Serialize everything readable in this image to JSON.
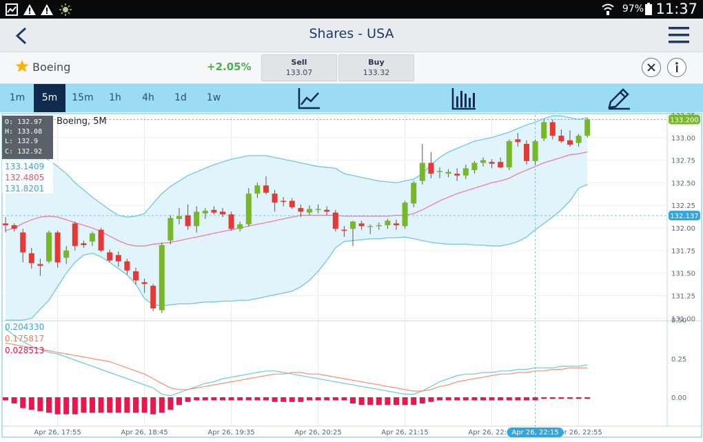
{
  "status_bar": {
    "battery": "97%",
    "time": "11:37",
    "left_icons": [
      "image-icon",
      "warning-icon",
      "warning-icon",
      "sun-icon"
    ],
    "right_icons": [
      "wifi-icon"
    ]
  },
  "header": {
    "title": "Shares - USA",
    "back_icon": "arrow-left-icon",
    "menu_icon": "hamburger-menu-icon"
  },
  "instrument": {
    "favorite_icon": "star-icon",
    "name": "Boeing",
    "change": "+2.05%",
    "sell_label": "Sell",
    "sell_price": "133.07",
    "buy_label": "Buy",
    "buy_price": "133.32",
    "close_icon": "close-icon",
    "info_icon": "info-icon"
  },
  "timeframes": {
    "items": [
      "1m",
      "5m",
      "15m",
      "1h",
      "4h",
      "1d",
      "1w"
    ],
    "active": "5m",
    "tools": [
      "line-chart-icon",
      "bar-chart-icon",
      "pencil-draw-icon"
    ]
  },
  "colors": {
    "up": "#77b72a",
    "down": "#e53935",
    "band": "#6ec6e6",
    "band_fill": "#e2f4fb",
    "ma": "#ec7f96",
    "accent": "#9bdcf3",
    "macd_line": "#6ec6e6",
    "macd_signal": "#f2916f",
    "macd_hist": "#e8174d"
  },
  "chart_data": {
    "type": "candlestick",
    "title": "Boeing, 5M",
    "ohlc_box": {
      "O": "132.97",
      "H": "133.08",
      "L": "132.9",
      "C": "132.92"
    },
    "indicator_values": [
      "133.1409",
      "132.4805",
      "131.8201"
    ],
    "price_axis": {
      "ticks": [
        "133.25",
        "133.00",
        "132.75",
        "132.50",
        "132.25",
        "132.00",
        "131.75",
        "131.50",
        "131.25",
        "131.00"
      ],
      "range": [
        130.98,
        133.28
      ],
      "current_price_label": "133.200",
      "crosshair_price_label": "132.137",
      "current_price": 133.2,
      "crosshair_price": 132.137
    },
    "time_axis": {
      "labels": [
        "Apr 26, 17:55",
        "Apr 26, 18:45",
        "Apr 26, 19:35",
        "Apr 26, 20:25",
        "Apr 26, 21:15",
        "Apr 26, 22:05",
        "Apr 26, 22:55"
      ],
      "crosshair_label": "Apr 26, 22:15",
      "crosshair_index": 61
    },
    "candles": [
      {
        "o": 132.05,
        "h": 132.12,
        "l": 131.95,
        "c": 132.03
      },
      {
        "o": 132.03,
        "h": 132.05,
        "l": 131.96,
        "c": 131.99
      },
      {
        "o": 131.95,
        "h": 131.99,
        "l": 131.62,
        "c": 131.73
      },
      {
        "o": 131.72,
        "h": 131.78,
        "l": 131.55,
        "c": 131.61
      },
      {
        "o": 131.6,
        "h": 131.66,
        "l": 131.47,
        "c": 131.58
      },
      {
        "o": 131.63,
        "h": 131.97,
        "l": 131.61,
        "c": 131.95
      },
      {
        "o": 131.95,
        "h": 131.97,
        "l": 131.56,
        "c": 131.62
      },
      {
        "o": 131.67,
        "h": 131.8,
        "l": 131.6,
        "c": 131.75
      },
      {
        "o": 132.05,
        "h": 132.07,
        "l": 131.75,
        "c": 131.8
      },
      {
        "o": 131.83,
        "h": 131.86,
        "l": 131.78,
        "c": 131.81
      },
      {
        "o": 131.85,
        "h": 131.96,
        "l": 131.8,
        "c": 131.94
      },
      {
        "o": 131.98,
        "h": 132.0,
        "l": 131.73,
        "c": 131.75
      },
      {
        "o": 131.73,
        "h": 131.76,
        "l": 131.62,
        "c": 131.64
      },
      {
        "o": 131.7,
        "h": 131.74,
        "l": 131.57,
        "c": 131.63
      },
      {
        "o": 131.63,
        "h": 131.66,
        "l": 131.48,
        "c": 131.53
      },
      {
        "o": 131.52,
        "h": 131.56,
        "l": 131.37,
        "c": 131.42
      },
      {
        "o": 131.4,
        "h": 131.44,
        "l": 131.28,
        "c": 131.38
      },
      {
        "o": 131.36,
        "h": 131.38,
        "l": 131.08,
        "c": 131.11
      },
      {
        "o": 131.09,
        "h": 131.84,
        "l": 131.06,
        "c": 131.81
      },
      {
        "o": 131.86,
        "h": 132.14,
        "l": 131.82,
        "c": 132.11
      },
      {
        "o": 132.1,
        "h": 132.22,
        "l": 132.04,
        "c": 132.13
      },
      {
        "o": 132.14,
        "h": 132.26,
        "l": 131.98,
        "c": 132.02
      },
      {
        "o": 132.02,
        "h": 132.24,
        "l": 131.95,
        "c": 132.18
      },
      {
        "o": 132.16,
        "h": 132.22,
        "l": 132.1,
        "c": 132.19
      },
      {
        "o": 132.2,
        "h": 132.24,
        "l": 132.15,
        "c": 132.17
      },
      {
        "o": 132.18,
        "h": 132.22,
        "l": 132.12,
        "c": 132.15
      },
      {
        "o": 132.15,
        "h": 132.18,
        "l": 131.97,
        "c": 131.99
      },
      {
        "o": 131.99,
        "h": 132.07,
        "l": 131.96,
        "c": 132.04
      },
      {
        "o": 132.04,
        "h": 132.44,
        "l": 132.02,
        "c": 132.38
      },
      {
        "o": 132.38,
        "h": 132.5,
        "l": 132.33,
        "c": 132.47
      },
      {
        "o": 132.47,
        "h": 132.57,
        "l": 132.37,
        "c": 132.39
      },
      {
        "o": 132.38,
        "h": 132.42,
        "l": 132.18,
        "c": 132.28
      },
      {
        "o": 132.3,
        "h": 132.34,
        "l": 132.24,
        "c": 132.29
      },
      {
        "o": 132.3,
        "h": 132.33,
        "l": 132.21,
        "c": 132.23
      },
      {
        "o": 132.22,
        "h": 132.26,
        "l": 132.12,
        "c": 132.18
      },
      {
        "o": 132.17,
        "h": 132.25,
        "l": 132.14,
        "c": 132.21
      },
      {
        "o": 132.2,
        "h": 132.26,
        "l": 132.16,
        "c": 132.21
      },
      {
        "o": 132.2,
        "h": 132.24,
        "l": 132.14,
        "c": 132.18
      },
      {
        "o": 132.17,
        "h": 132.2,
        "l": 131.96,
        "c": 131.99
      },
      {
        "o": 131.98,
        "h": 132.02,
        "l": 131.9,
        "c": 131.97
      },
      {
        "o": 131.99,
        "h": 132.08,
        "l": 131.8,
        "c": 132.07
      },
      {
        "o": 132.05,
        "h": 132.08,
        "l": 131.98,
        "c": 132.02
      },
      {
        "o": 132.01,
        "h": 132.04,
        "l": 131.93,
        "c": 132.02
      },
      {
        "o": 132.02,
        "h": 132.06,
        "l": 131.98,
        "c": 132.03
      },
      {
        "o": 132.03,
        "h": 132.1,
        "l": 131.99,
        "c": 132.08
      },
      {
        "o": 132.05,
        "h": 132.09,
        "l": 131.98,
        "c": 132.03
      },
      {
        "o": 132.02,
        "h": 132.3,
        "l": 131.99,
        "c": 132.28
      },
      {
        "o": 132.27,
        "h": 132.52,
        "l": 132.23,
        "c": 132.5
      },
      {
        "o": 132.52,
        "h": 132.93,
        "l": 132.48,
        "c": 132.72
      },
      {
        "o": 132.72,
        "h": 132.84,
        "l": 132.55,
        "c": 132.6
      },
      {
        "o": 132.62,
        "h": 132.67,
        "l": 132.55,
        "c": 132.63
      },
      {
        "o": 132.6,
        "h": 132.65,
        "l": 132.56,
        "c": 132.62
      },
      {
        "o": 132.6,
        "h": 132.66,
        "l": 132.52,
        "c": 132.58
      },
      {
        "o": 132.58,
        "h": 132.7,
        "l": 132.54,
        "c": 132.66
      },
      {
        "o": 132.64,
        "h": 132.74,
        "l": 132.6,
        "c": 132.72
      },
      {
        "o": 132.72,
        "h": 132.78,
        "l": 132.68,
        "c": 132.75
      },
      {
        "o": 132.73,
        "h": 132.76,
        "l": 132.66,
        "c": 132.71
      },
      {
        "o": 132.73,
        "h": 132.78,
        "l": 132.66,
        "c": 132.67
      },
      {
        "o": 132.67,
        "h": 132.98,
        "l": 132.64,
        "c": 132.96
      },
      {
        "o": 132.98,
        "h": 133.05,
        "l": 132.9,
        "c": 132.95
      },
      {
        "o": 132.93,
        "h": 132.97,
        "l": 132.7,
        "c": 132.74
      },
      {
        "o": 132.74,
        "h": 132.98,
        "l": 132.7,
        "c": 132.96
      },
      {
        "o": 132.99,
        "h": 133.2,
        "l": 132.96,
        "c": 133.17
      },
      {
        "o": 133.17,
        "h": 133.2,
        "l": 132.98,
        "c": 133.02
      },
      {
        "o": 133.02,
        "h": 133.09,
        "l": 132.94,
        "c": 132.96
      },
      {
        "o": 132.97,
        "h": 133.08,
        "l": 132.9,
        "c": 132.92
      },
      {
        "o": 132.94,
        "h": 133.04,
        "l": 132.9,
        "c": 133.02
      },
      {
        "o": 133.02,
        "h": 133.22,
        "l": 133.0,
        "c": 133.2
      }
    ],
    "bands": {
      "upper": [
        133.14,
        133.14,
        133.0,
        132.9,
        132.82,
        132.75,
        132.68,
        132.6,
        132.5,
        132.42,
        132.34,
        132.27,
        132.2,
        132.14,
        132.12,
        132.13,
        132.16,
        132.27,
        132.38,
        132.46,
        132.52,
        132.58,
        132.62,
        132.66,
        132.7,
        132.73,
        132.76,
        132.78,
        132.8,
        132.8,
        132.8,
        132.78,
        132.76,
        132.74,
        132.72,
        132.7,
        132.68,
        132.67,
        132.66,
        132.6,
        132.58,
        132.56,
        132.54,
        132.52,
        132.51,
        132.5,
        132.52,
        132.54,
        132.6,
        132.7,
        132.78,
        132.84,
        132.88,
        132.92,
        132.96,
        132.98,
        133.0,
        133.03,
        133.06,
        133.1,
        133.14,
        133.17,
        133.21,
        133.24,
        133.24,
        133.22,
        133.2,
        133.22
      ],
      "middle": [
        131.97,
        132.0,
        132.05,
        132.09,
        132.12,
        132.13,
        132.12,
        132.09,
        132.06,
        132.03,
        132.0,
        131.96,
        131.91,
        131.86,
        131.82,
        131.8,
        131.8,
        131.82,
        131.83,
        131.84,
        131.86,
        131.88,
        131.9,
        131.92,
        131.94,
        131.96,
        131.98,
        132.0,
        132.02,
        132.04,
        132.06,
        132.08,
        132.1,
        132.12,
        132.14,
        132.14,
        132.14,
        132.14,
        132.14,
        132.13,
        132.13,
        132.13,
        132.13,
        132.13,
        132.13,
        132.14,
        132.14,
        132.16,
        132.2,
        132.25,
        132.3,
        132.34,
        132.38,
        132.41,
        132.44,
        132.47,
        132.5,
        132.52,
        132.55,
        132.6,
        132.64,
        132.68,
        132.72,
        132.75,
        132.78,
        132.81,
        132.82,
        132.84
      ],
      "lower": [
        130.82,
        130.85,
        130.92,
        131.0,
        131.1,
        131.2,
        131.35,
        131.5,
        131.62,
        131.7,
        131.72,
        131.68,
        131.62,
        131.55,
        131.48,
        131.38,
        131.22,
        131.15,
        131.14,
        131.15,
        131.16,
        131.16,
        131.17,
        131.18,
        131.18,
        131.19,
        131.19,
        131.2,
        131.2,
        131.22,
        131.24,
        131.26,
        131.28,
        131.3,
        131.35,
        131.42,
        131.52,
        131.64,
        131.78,
        131.85,
        131.86,
        131.87,
        131.88,
        131.88,
        131.89,
        131.89,
        131.9,
        131.88,
        131.86,
        131.84,
        131.83,
        131.82,
        131.82,
        131.82,
        131.81,
        131.81,
        131.8,
        131.8,
        131.82,
        131.85,
        131.9,
        131.98,
        132.05,
        132.12,
        132.2,
        132.3,
        132.44,
        132.48
      ]
    },
    "macd": {
      "values": [
        "0.204330",
        "0.175817",
        "0.028513"
      ],
      "ticks": [
        "0.50",
        "0.25",
        "0.00"
      ],
      "range": [
        -0.2,
        0.6
      ],
      "line": [
        0.44,
        0.4,
        0.36,
        0.33,
        0.31,
        0.29,
        0.28,
        0.26,
        0.24,
        0.22,
        0.2,
        0.18,
        0.16,
        0.14,
        0.12,
        0.1,
        0.08,
        0.06,
        0.02,
        0.01,
        0.03,
        0.05,
        0.07,
        0.09,
        0.1,
        0.12,
        0.13,
        0.14,
        0.15,
        0.16,
        0.17,
        0.17,
        0.16,
        0.15,
        0.14,
        0.13,
        0.12,
        0.11,
        0.1,
        0.09,
        0.08,
        0.07,
        0.06,
        0.05,
        0.04,
        0.03,
        0.02,
        0.02,
        0.04,
        0.07,
        0.1,
        0.12,
        0.14,
        0.15,
        0.15,
        0.16,
        0.16,
        0.17,
        0.17,
        0.18,
        0.18,
        0.19,
        0.19,
        0.19,
        0.2,
        0.2,
        0.2,
        0.21
      ],
      "signal": [
        0.35,
        0.34,
        0.33,
        0.32,
        0.31,
        0.3,
        0.29,
        0.28,
        0.27,
        0.26,
        0.25,
        0.24,
        0.23,
        0.21,
        0.19,
        0.17,
        0.15,
        0.12,
        0.09,
        0.06,
        0.05,
        0.05,
        0.06,
        0.07,
        0.08,
        0.09,
        0.1,
        0.11,
        0.12,
        0.13,
        0.14,
        0.15,
        0.15,
        0.16,
        0.16,
        0.15,
        0.15,
        0.14,
        0.13,
        0.12,
        0.11,
        0.1,
        0.09,
        0.08,
        0.07,
        0.06,
        0.05,
        0.04,
        0.04,
        0.05,
        0.07,
        0.08,
        0.1,
        0.11,
        0.12,
        0.13,
        0.14,
        0.15,
        0.15,
        0.16,
        0.16,
        0.17,
        0.17,
        0.18,
        0.18,
        0.19,
        0.19,
        0.19
      ],
      "hist": [
        -0.02,
        -0.04,
        -0.07,
        -0.08,
        -0.09,
        -0.1,
        -0.11,
        -0.11,
        -0.11,
        -0.1,
        -0.1,
        -0.1,
        -0.1,
        -0.1,
        -0.1,
        -0.1,
        -0.1,
        -0.11,
        -0.1,
        -0.08,
        -0.05,
        -0.03,
        -0.02,
        -0.02,
        -0.02,
        -0.02,
        -0.02,
        -0.02,
        -0.02,
        -0.02,
        -0.02,
        -0.03,
        -0.03,
        -0.03,
        -0.03,
        -0.02,
        -0.02,
        -0.02,
        -0.02,
        -0.02,
        -0.04,
        -0.05,
        -0.05,
        -0.05,
        -0.05,
        -0.05,
        -0.05,
        -0.05,
        -0.04,
        -0.03,
        -0.02,
        -0.02,
        -0.02,
        -0.02,
        -0.02,
        -0.02,
        -0.02,
        -0.02,
        -0.02,
        -0.02,
        -0.02,
        -0.02,
        -0.01,
        -0.01,
        -0.01,
        -0.01,
        -0.01,
        -0.01
      ]
    }
  }
}
